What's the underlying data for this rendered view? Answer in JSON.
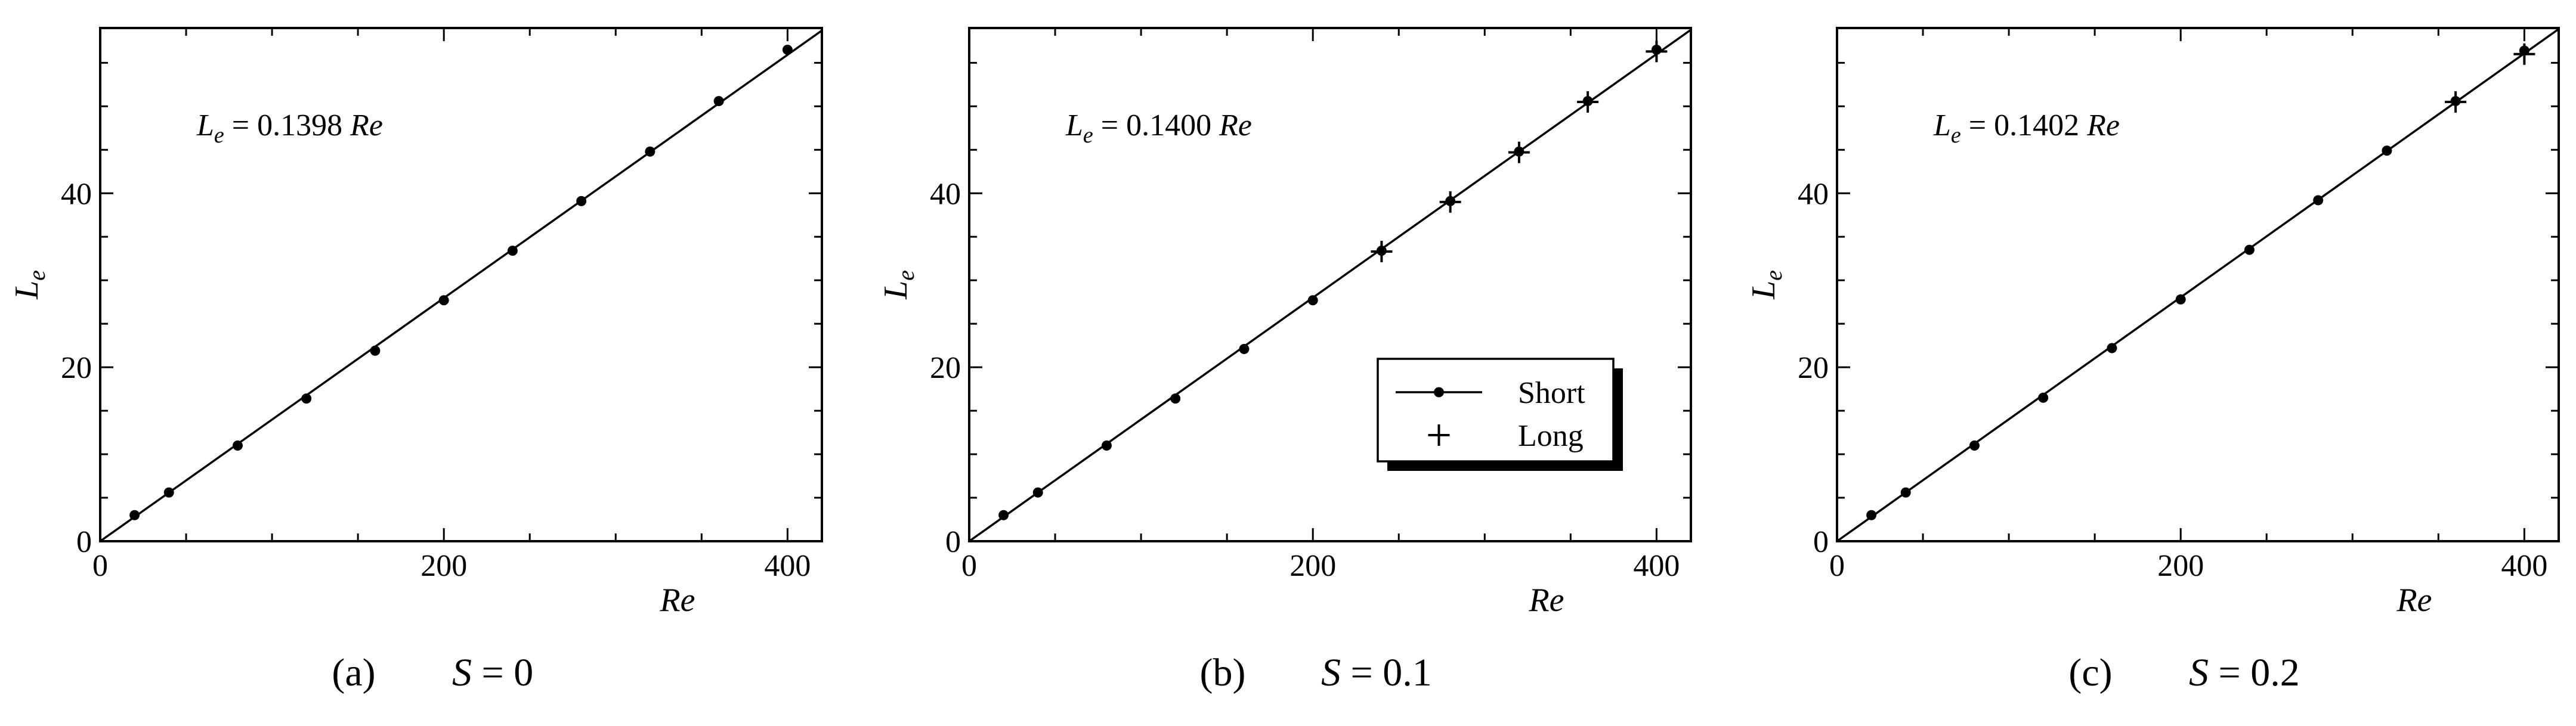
{
  "chart_data": [
    {
      "type": "scatter",
      "panel_label": "(a)",
      "s_label": "S",
      "s_value": "= 0",
      "equation": {
        "symbol": "L",
        "sub": "e",
        "text": " = 0.1398 ",
        "var": "Re"
      },
      "xlabel": "Re",
      "ylabel": {
        "symbol": "L",
        "sub": "e"
      },
      "xlim": [
        0,
        420
      ],
      "ylim": [
        0,
        59
      ],
      "xticks": [
        0,
        200,
        400
      ],
      "yticks": [
        0,
        20,
        40
      ],
      "fit_slope": 0.1398,
      "series": [
        {
          "name": "Short",
          "marker": "dot",
          "x": [
            20,
            40,
            80,
            120,
            160,
            200,
            240,
            280,
            320,
            360,
            400
          ],
          "y": [
            3.0,
            5.6,
            11.0,
            16.4,
            21.9,
            27.7,
            33.4,
            39.1,
            44.8,
            50.6,
            56.5
          ]
        }
      ]
    },
    {
      "type": "scatter",
      "panel_label": "(b)",
      "s_label": "S",
      "s_value": "= 0.1",
      "equation": {
        "symbol": "L",
        "sub": "e",
        "text": " = 0.1400 ",
        "var": "Re"
      },
      "xlabel": "Re",
      "ylabel": {
        "symbol": "L",
        "sub": "e"
      },
      "xlim": [
        0,
        420
      ],
      "ylim": [
        0,
        59
      ],
      "xticks": [
        0,
        200,
        400
      ],
      "yticks": [
        0,
        20,
        40
      ],
      "fit_slope": 0.14,
      "legend": {
        "position": "lower-right",
        "entries": [
          "Short",
          "Long"
        ]
      },
      "series": [
        {
          "name": "Short",
          "marker": "dot",
          "x": [
            20,
            40,
            80,
            120,
            160,
            200,
            240,
            280,
            320,
            360,
            400
          ],
          "y": [
            3.0,
            5.6,
            11.0,
            16.4,
            22.1,
            27.7,
            33.4,
            39.1,
            44.8,
            50.6,
            56.5
          ]
        },
        {
          "name": "Long",
          "marker": "plus",
          "x": [
            240,
            280,
            320,
            360,
            400
          ],
          "y": [
            33.3,
            39.0,
            44.7,
            50.5,
            56.3
          ]
        }
      ]
    },
    {
      "type": "scatter",
      "panel_label": "(c)",
      "s_label": "S",
      "s_value": "= 0.2",
      "equation": {
        "symbol": "L",
        "sub": "e",
        "text": " = 0.1402 ",
        "var": "Re"
      },
      "xlabel": "Re",
      "ylabel": {
        "symbol": "L",
        "sub": "e"
      },
      "xlim": [
        0,
        420
      ],
      "ylim": [
        0,
        59
      ],
      "xticks": [
        0,
        200,
        400
      ],
      "yticks": [
        0,
        20,
        40
      ],
      "fit_slope": 0.1402,
      "series": [
        {
          "name": "Short",
          "marker": "dot",
          "x": [
            20,
            40,
            80,
            120,
            160,
            200,
            240,
            280,
            320,
            360,
            400
          ],
          "y": [
            3.0,
            5.6,
            11.0,
            16.5,
            22.2,
            27.8,
            33.5,
            39.2,
            44.9,
            50.6,
            56.4
          ]
        },
        {
          "name": "Long",
          "marker": "plus",
          "x": [
            360,
            400
          ],
          "y": [
            50.5,
            56.0
          ]
        }
      ]
    }
  ]
}
